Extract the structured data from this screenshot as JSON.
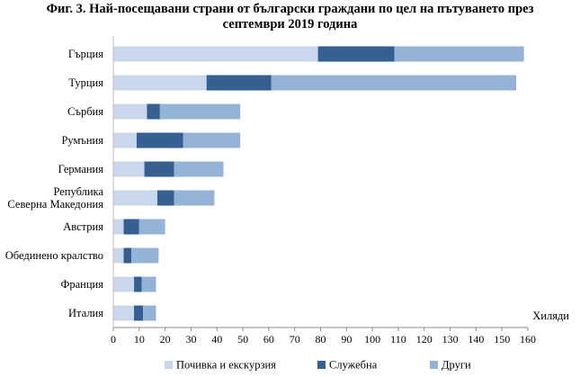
{
  "chart_data": {
    "type": "bar",
    "orientation": "horizontal",
    "stacked": true,
    "title_lines": [
      "Фиг. 3. Най-посещавани страни от български граждани по цел на пътуването през",
      "септември 2019 година"
    ],
    "categories": [
      [
        "Гърция"
      ],
      [
        "Турция"
      ],
      [
        "Сърбия"
      ],
      [
        "Румъния"
      ],
      [
        "Германия"
      ],
      [
        "Република",
        "Северна Македония"
      ],
      [
        "Австрия"
      ],
      [
        "Обединено кралство"
      ],
      [
        "Франция"
      ],
      [
        "Италия"
      ]
    ],
    "series": [
      {
        "name": "Почивка и екскурзия",
        "color": "#c9d7ec",
        "values": [
          79,
          36,
          13,
          9,
          12,
          17,
          4,
          4,
          8,
          8
        ]
      },
      {
        "name": "Служебна",
        "color": "#365f91",
        "values": [
          29.5,
          25,
          5,
          18,
          11.5,
          6.5,
          6,
          3,
          3,
          3.5
        ]
      },
      {
        "name": "Други",
        "color": "#95b3d7",
        "values": [
          50,
          94.5,
          31,
          22,
          19,
          15.5,
          10,
          10.5,
          5.5,
          5
        ]
      }
    ],
    "x_unit_label": "Хиляди",
    "xlim": [
      0,
      160
    ],
    "x_ticks": [
      0,
      10,
      20,
      30,
      40,
      50,
      60,
      70,
      80,
      90,
      100,
      110,
      120,
      130,
      140,
      150,
      160
    ],
    "grid": false,
    "legend_position": "bottom"
  }
}
